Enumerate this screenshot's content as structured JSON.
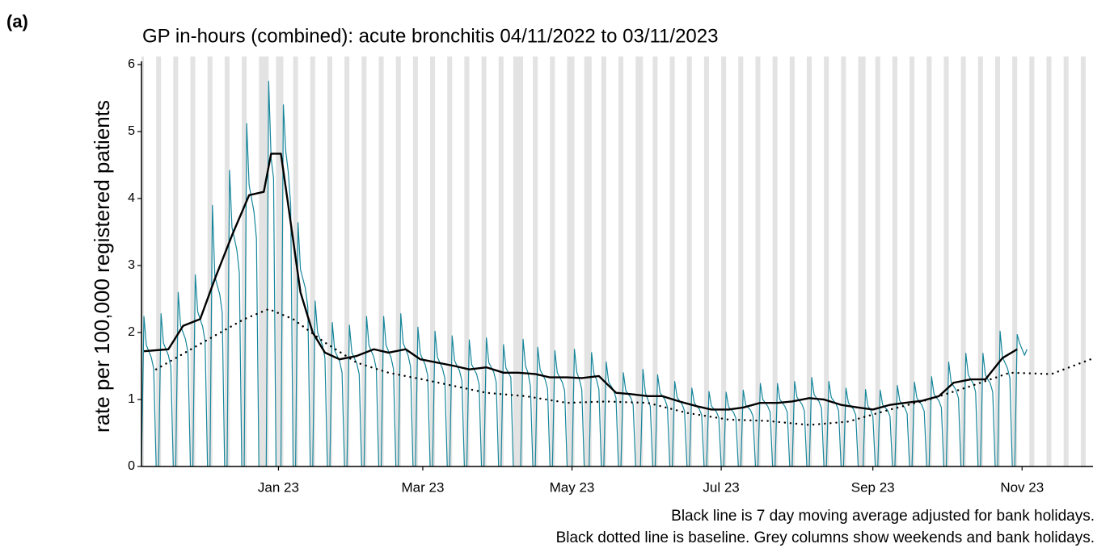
{
  "chart_data": {
    "type": "line",
    "panel_label": "(a)",
    "title": "GP in-hours (combined): acute bronchitis 04/11/2022 to 03/11/2023",
    "y_label": "rate per 100,000 registered patients",
    "notes": [
      "Black line is 7 day moving average adjusted for bank holidays.",
      "Black dotted line is baseline. Grey columns show weekends and bank holidays."
    ],
    "xlim": [
      2,
      391
    ],
    "xticks": [
      {
        "value": 58,
        "label": "Jan 23"
      },
      {
        "value": 117,
        "label": "Mar 23"
      },
      {
        "value": 178,
        "label": "May 23"
      },
      {
        "value": 239,
        "label": "Jul 23"
      },
      {
        "value": 301,
        "label": "Sep 23"
      },
      {
        "value": 362,
        "label": "Nov 23"
      }
    ],
    "ylim": [
      0,
      6
    ],
    "yticks": [
      0,
      1,
      2,
      3,
      4,
      5,
      6
    ],
    "shaded_color": "#e3e3e3",
    "shaded_columns": [
      [
        1,
        3
      ],
      [
        8,
        10
      ],
      [
        15,
        17
      ],
      [
        22,
        24
      ],
      [
        29,
        31
      ],
      [
        36,
        38
      ],
      [
        43,
        45
      ],
      [
        50,
        54
      ],
      [
        57,
        60
      ],
      [
        64,
        66
      ],
      [
        71,
        73
      ],
      [
        78,
        80
      ],
      [
        85,
        87
      ],
      [
        92,
        94
      ],
      [
        99,
        101
      ],
      [
        106,
        108
      ],
      [
        113,
        115
      ],
      [
        120,
        122
      ],
      [
        127,
        129
      ],
      [
        134,
        136
      ],
      [
        141,
        143
      ],
      [
        148,
        150
      ],
      [
        154,
        158
      ],
      [
        162,
        164
      ],
      [
        169,
        171
      ],
      [
        176,
        179
      ],
      [
        183,
        186
      ],
      [
        190,
        192
      ],
      [
        197,
        199
      ],
      [
        204,
        207
      ],
      [
        211,
        213
      ],
      [
        218,
        220
      ],
      [
        225,
        227
      ],
      [
        232,
        234
      ],
      [
        239,
        241
      ],
      [
        246,
        248
      ],
      [
        253,
        255
      ],
      [
        260,
        262
      ],
      [
        267,
        269
      ],
      [
        274,
        276
      ],
      [
        281,
        283
      ],
      [
        288,
        290
      ],
      [
        295,
        298
      ],
      [
        302,
        304
      ],
      [
        309,
        311
      ],
      [
        316,
        318
      ],
      [
        323,
        325
      ],
      [
        330,
        332
      ],
      [
        337,
        339
      ],
      [
        344,
        346
      ],
      [
        351,
        353
      ],
      [
        358,
        360
      ],
      [
        365,
        367
      ],
      [
        372,
        374
      ],
      [
        379,
        381
      ],
      [
        386,
        388
      ]
    ],
    "series": [
      {
        "color": "#17869b",
        "style": "solid",
        "width": 1.2,
        "x": [
          2,
          3,
          4,
          5,
          6,
          7,
          8,
          9,
          10,
          11,
          12,
          13,
          14,
          15,
          16,
          17,
          18,
          19,
          20,
          21,
          22,
          23,
          24,
          25,
          26,
          27,
          28,
          29,
          30,
          31,
          32,
          33,
          34,
          35,
          36,
          37,
          38,
          39,
          40,
          41,
          42,
          43,
          44,
          45,
          46,
          47,
          48,
          49,
          50,
          51,
          52,
          53,
          54,
          55,
          56,
          57,
          58,
          59,
          60,
          61,
          62,
          63,
          64,
          65,
          66,
          67,
          68,
          69,
          70,
          71,
          72,
          73,
          74,
          75,
          76,
          77,
          78,
          79,
          80,
          81,
          82,
          83,
          84,
          85,
          86,
          87,
          88,
          89,
          90,
          91,
          92,
          93,
          94,
          95,
          96,
          97,
          98,
          99,
          100,
          101,
          102,
          103,
          104,
          105,
          106,
          107,
          108,
          109,
          110,
          111,
          112,
          113,
          114,
          115,
          116,
          117,
          118,
          119,
          120,
          121,
          122,
          123,
          124,
          125,
          126,
          127,
          128,
          129,
          130,
          131,
          132,
          133,
          134,
          135,
          136,
          137,
          138,
          139,
          140,
          141,
          142,
          143,
          144,
          145,
          146,
          147,
          148,
          149,
          150,
          151,
          152,
          153,
          154,
          155,
          156,
          157,
          158,
          159,
          160,
          161,
          162,
          163,
          164,
          165,
          166,
          167,
          168,
          169,
          170,
          171,
          172,
          173,
          174,
          175,
          176,
          177,
          178,
          179,
          180,
          181,
          182,
          183,
          184,
          185,
          186,
          187,
          188,
          189,
          190,
          191,
          192,
          193,
          194,
          195,
          196,
          197,
          198,
          199,
          200,
          201,
          202,
          203,
          204,
          205,
          206,
          207,
          208,
          209,
          210,
          211,
          212,
          213,
          214,
          215,
          216,
          217,
          218,
          219,
          220,
          221,
          222,
          223,
          224,
          225,
          226,
          227,
          228,
          229,
          230,
          231,
          232,
          233,
          234,
          235,
          236,
          237,
          238,
          239,
          240,
          241,
          242,
          243,
          244,
          245,
          246,
          247,
          248,
          249,
          250,
          251,
          252,
          253,
          254,
          255,
          256,
          257,
          258,
          259,
          260,
          261,
          262,
          263,
          264,
          265,
          266,
          267,
          268,
          269,
          270,
          271,
          272,
          273,
          274,
          275,
          276,
          277,
          278,
          279,
          280,
          281,
          282,
          283,
          284,
          285,
          286,
          287,
          288,
          289,
          290,
          291,
          292,
          293,
          294,
          295,
          296,
          297,
          298,
          299,
          300,
          301,
          302,
          303,
          304,
          305,
          306,
          307,
          308,
          309,
          310,
          311,
          312,
          313,
          314,
          315,
          316,
          317,
          318,
          319,
          320,
          321,
          322,
          323,
          324,
          325,
          326,
          327,
          328,
          329,
          330,
          331,
          332,
          333,
          334,
          335,
          336,
          337,
          338,
          339,
          340,
          341,
          342,
          343,
          344,
          345,
          346,
          347,
          348,
          349,
          350,
          351,
          352,
          353,
          354,
          355,
          356,
          357,
          358,
          359,
          360,
          361,
          362,
          363,
          364
        ],
        "values": [
          0,
          2.24,
          1.81,
          1.72,
          1.63,
          1.46,
          0,
          0,
          2.28,
          1.84,
          1.75,
          1.66,
          1.49,
          0,
          0,
          2.6,
          2.1,
          2.0,
          1.9,
          1.7,
          0,
          0,
          2.86,
          2.31,
          2.2,
          2.09,
          1.87,
          0,
          0,
          3.9,
          2.84,
          2.7,
          2.57,
          2.3,
          0,
          0,
          4.42,
          3.57,
          3.4,
          3.23,
          2.89,
          0,
          0,
          5.12,
          4.2,
          4.0,
          3.8,
          3.4,
          0,
          0,
          0,
          0,
          5.75,
          4.6,
          4.3,
          0,
          0,
          0,
          5.4,
          4.7,
          4.4,
          3.9,
          0,
          0,
          3.64,
          2.94,
          2.8,
          2.66,
          2.38,
          0,
          0,
          2.47,
          2.0,
          1.9,
          1.81,
          1.62,
          0,
          0,
          2.15,
          1.73,
          1.65,
          1.57,
          1.4,
          0,
          0,
          2.11,
          1.7,
          1.62,
          1.54,
          1.38,
          0,
          0,
          2.24,
          1.81,
          1.72,
          1.63,
          1.46,
          0,
          0,
          2.24,
          1.81,
          1.72,
          1.63,
          1.46,
          0,
          0,
          2.28,
          1.84,
          1.75,
          1.66,
          1.49,
          0,
          0,
          2.08,
          1.68,
          1.6,
          1.52,
          1.36,
          0,
          0,
          2.02,
          1.63,
          1.55,
          1.47,
          1.32,
          0,
          0,
          1.95,
          1.58,
          1.5,
          1.43,
          1.28,
          0,
          0,
          1.89,
          1.52,
          1.45,
          1.38,
          1.23,
          0,
          0,
          1.92,
          1.55,
          1.48,
          1.41,
          1.26,
          0,
          0,
          1.82,
          1.47,
          1.4,
          1.33,
          0,
          0,
          0,
          0,
          1.9,
          1.5,
          1.4,
          1.2,
          0,
          0,
          1.78,
          1.44,
          1.37,
          1.3,
          1.16,
          0,
          0,
          1.73,
          1.4,
          1.33,
          1.26,
          1.13,
          0,
          0,
          0,
          1.75,
          1.4,
          1.3,
          1.15,
          0,
          0,
          0,
          1.7,
          1.38,
          1.3,
          1.15,
          0,
          0,
          1.56,
          1.26,
          1.2,
          1.14,
          1.02,
          0,
          0,
          1.4,
          1.13,
          1.08,
          1.03,
          0.92,
          0,
          0,
          0,
          1.45,
          1.1,
          1.0,
          0.9,
          0,
          0,
          1.37,
          1.1,
          1.05,
          1.0,
          0.89,
          0,
          0,
          1.27,
          1.03,
          0.98,
          0.93,
          0.83,
          0,
          0,
          1.17,
          0.95,
          0.9,
          0.86,
          0.77,
          0,
          0,
          1.12,
          0.9,
          0.86,
          0.82,
          0.73,
          0,
          0,
          1.11,
          0.89,
          0.85,
          0.81,
          0.72,
          0,
          0,
          1.14,
          0.92,
          0.88,
          0.84,
          0.75,
          0,
          0,
          1.24,
          1.0,
          0.95,
          0.9,
          0.81,
          0,
          0,
          1.24,
          1.0,
          0.95,
          0.9,
          0.81,
          0,
          0,
          1.27,
          1.03,
          0.98,
          0.93,
          0.83,
          0,
          0,
          1.33,
          1.07,
          1.02,
          0.97,
          0.87,
          0,
          0,
          1.27,
          1.03,
          0.98,
          0.93,
          0.83,
          0,
          0,
          1.17,
          0.95,
          0.9,
          0.86,
          0.77,
          0,
          0,
          0,
          1.15,
          0.9,
          0.85,
          0.75,
          0,
          0,
          1.14,
          0.92,
          0.88,
          0.84,
          0.75,
          0,
          0,
          1.21,
          0.98,
          0.93,
          0.88,
          0.79,
          0,
          0,
          1.26,
          1.02,
          0.97,
          0.92,
          0.82,
          0,
          0,
          1.34,
          1.08,
          1.03,
          0.98,
          0.88,
          0,
          0,
          1.56,
          1.26,
          1.2,
          1.14,
          1.02,
          0,
          0,
          1.69,
          1.37,
          1.3,
          1.24,
          1.11,
          0,
          0,
          1.69,
          1.37,
          1.3,
          1.24,
          1.11,
          0,
          0,
          2.02,
          1.63,
          1.55,
          1.47,
          1.32,
          0,
          0,
          1.97,
          1.84,
          1.75,
          1.66,
          1.75
        ]
      },
      {
        "color": "#000000",
        "style": "solid",
        "width": 2.4,
        "x": [
          3,
          13,
          19,
          26,
          32,
          39,
          46,
          52,
          55,
          59,
          62,
          67,
          72,
          77,
          83,
          90,
          97,
          103,
          110,
          116,
          123,
          130,
          136,
          143,
          150,
          156,
          163,
          169,
          176,
          182,
          189,
          196,
          202,
          209,
          215,
          222,
          229,
          235,
          242,
          248,
          255,
          262,
          268,
          275,
          281,
          288,
          295,
          301,
          308,
          314,
          321,
          328,
          334,
          341,
          347,
          354,
          360
        ],
        "values": [
          1.72,
          1.75,
          2.1,
          2.2,
          2.8,
          3.45,
          4.05,
          4.1,
          4.67,
          4.67,
          3.9,
          2.6,
          2.0,
          1.7,
          1.6,
          1.65,
          1.75,
          1.7,
          1.75,
          1.6,
          1.55,
          1.5,
          1.45,
          1.48,
          1.4,
          1.4,
          1.38,
          1.33,
          1.33,
          1.32,
          1.35,
          1.1,
          1.08,
          1.05,
          1.05,
          0.97,
          0.9,
          0.85,
          0.85,
          0.88,
          0.95,
          0.95,
          0.97,
          1.02,
          1.0,
          0.92,
          0.88,
          0.85,
          0.92,
          0.95,
          0.98,
          1.05,
          1.25,
          1.3,
          1.3,
          1.62,
          1.75
        ]
      },
      {
        "color": "#000000",
        "style": "dotted",
        "width": 2.4,
        "x": [
          8,
          27,
          44,
          54,
          64,
          77,
          90,
          103,
          117,
          130,
          143,
          159,
          176,
          192,
          209,
          225,
          242,
          258,
          275,
          291,
          308,
          324,
          341,
          357,
          374,
          390
        ],
        "values": [
          1.45,
          1.85,
          2.2,
          2.35,
          2.2,
          1.85,
          1.55,
          1.4,
          1.3,
          1.2,
          1.1,
          1.05,
          0.95,
          0.97,
          0.95,
          0.8,
          0.7,
          0.68,
          0.62,
          0.67,
          0.85,
          1.0,
          1.2,
          1.4,
          1.38,
          1.6
        ]
      }
    ]
  }
}
